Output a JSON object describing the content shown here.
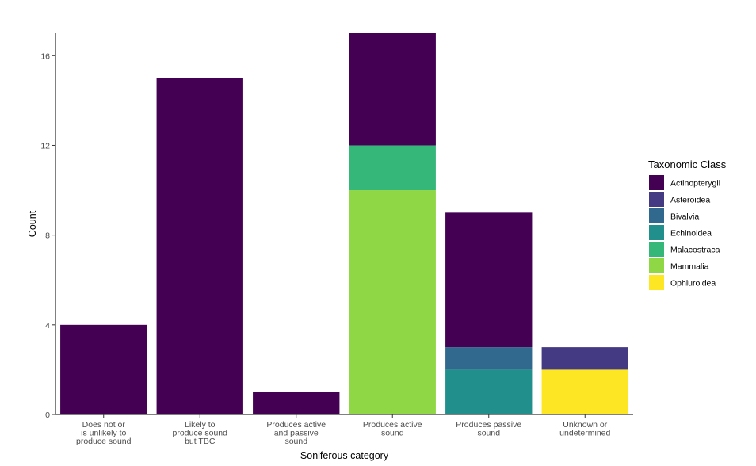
{
  "chart_data": {
    "type": "bar",
    "stacked": true,
    "xlabel": "Soniferous category",
    "ylabel": "Count",
    "ylim": [
      0,
      17
    ],
    "y_ticks": [
      0,
      4,
      8,
      12,
      16
    ],
    "grid": false,
    "legend_placement": "right",
    "legend_title": "Taxonomic Class",
    "categories": [
      [
        "Does not or",
        "is unlikely to",
        "produce sound"
      ],
      [
        "Likely to",
        "produce sound",
        "but TBC"
      ],
      [
        "Produces active",
        "and passive",
        "sound"
      ],
      [
        "Produces active",
        "sound"
      ],
      [
        "Produces passive",
        "sound"
      ],
      [
        "Unknown or",
        "undetermined"
      ]
    ],
    "series": [
      {
        "name": "Actinopterygii",
        "color": "#440154",
        "values": [
          4,
          15,
          1,
          5,
          6,
          0
        ]
      },
      {
        "name": "Asteroidea",
        "color": "#443983",
        "values": [
          0,
          0,
          0,
          0,
          0,
          1
        ]
      },
      {
        "name": "Bivalvia",
        "color": "#31688E",
        "values": [
          0,
          0,
          0,
          0,
          1,
          0
        ]
      },
      {
        "name": "Echinoidea",
        "color": "#21908C",
        "values": [
          0,
          0,
          0,
          0,
          2,
          0
        ]
      },
      {
        "name": "Malacostraca",
        "color": "#35B779",
        "values": [
          0,
          0,
          0,
          2,
          0,
          0
        ]
      },
      {
        "name": "Mammalia",
        "color": "#8FD744",
        "values": [
          0,
          0,
          0,
          10,
          0,
          0
        ]
      },
      {
        "name": "Ophiuroidea",
        "color": "#FDE725",
        "values": [
          0,
          0,
          0,
          0,
          0,
          2
        ]
      }
    ]
  }
}
